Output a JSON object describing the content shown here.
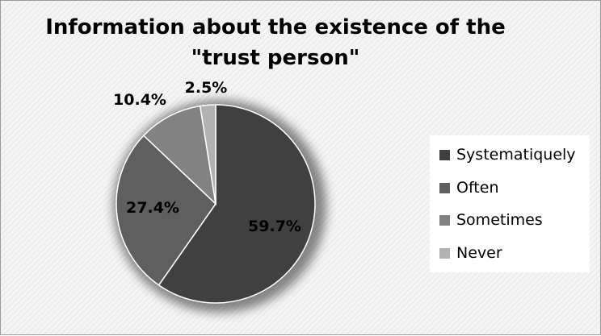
{
  "chart_data": {
    "type": "pie",
    "title": "Information about the existence of the\n\"trust person\"",
    "slices": [
      {
        "label": "Systematiquely",
        "value": 59.7,
        "data_label": "59.7%",
        "color": "#404040"
      },
      {
        "label": "Often",
        "value": 27.4,
        "data_label": "27.4%",
        "color": "#5f5f5f"
      },
      {
        "label": "Sometimes",
        "value": 10.4,
        "data_label": "10.4%",
        "color": "#828282"
      },
      {
        "label": "Never",
        "value": 2.5,
        "data_label": "2.5%",
        "color": "#b2b2b2"
      }
    ],
    "legend_position": "right"
  }
}
